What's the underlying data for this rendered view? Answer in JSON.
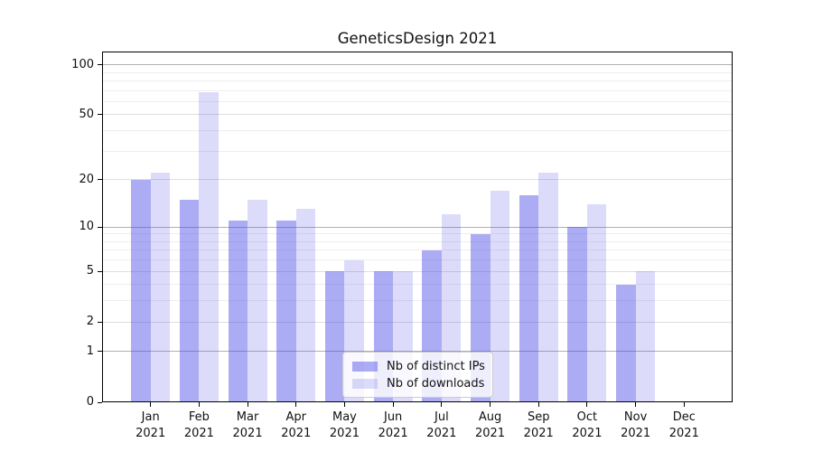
{
  "title": "GeneticsDesign 2021",
  "colors": {
    "distinct_ips_bar": "rgba(70,70,230,0.45)",
    "downloads_bar": "rgba(70,70,230,0.19)",
    "decade_gridline": "#b0b0b0",
    "major_gridline": "#dedede",
    "minor_gridline": "#eeeeee",
    "spine": "#000000",
    "background": "#ffffff"
  },
  "legend": {
    "items": [
      {
        "label": "Nb of distinct IPs",
        "series": "distinct_ips"
      },
      {
        "label": "Nb of downloads",
        "series": "downloads"
      }
    ]
  },
  "chart_data": {
    "type": "bar",
    "title": "GeneticsDesign 2021",
    "categories": [
      "Jan 2021",
      "Feb 2021",
      "Mar 2021",
      "Apr 2021",
      "May 2021",
      "Jun 2021",
      "Jul 2021",
      "Aug 2021",
      "Sep 2021",
      "Oct 2021",
      "Nov 2021",
      "Dec 2021"
    ],
    "series": [
      {
        "name": "Nb of distinct IPs",
        "values": [
          20,
          15,
          11,
          11,
          5,
          5,
          7,
          9,
          16,
          10,
          4,
          0
        ]
      },
      {
        "name": "Nb of downloads",
        "values": [
          22,
          68,
          15,
          13,
          6,
          5,
          12,
          17,
          22,
          14,
          5,
          0
        ]
      }
    ],
    "y_scale": "log1p",
    "ylim": [
      0,
      120
    ],
    "y_ticks": [
      0,
      1,
      2,
      5,
      10,
      20,
      50,
      100
    ],
    "y_decade_ticks": [
      1,
      10,
      100
    ],
    "y_minor_ticks": [
      3,
      4,
      6,
      7,
      8,
      9,
      30,
      40,
      60,
      70,
      80,
      90
    ],
    "grid": "on",
    "legend_position": "lower center",
    "xlabel": "",
    "ylabel": ""
  }
}
